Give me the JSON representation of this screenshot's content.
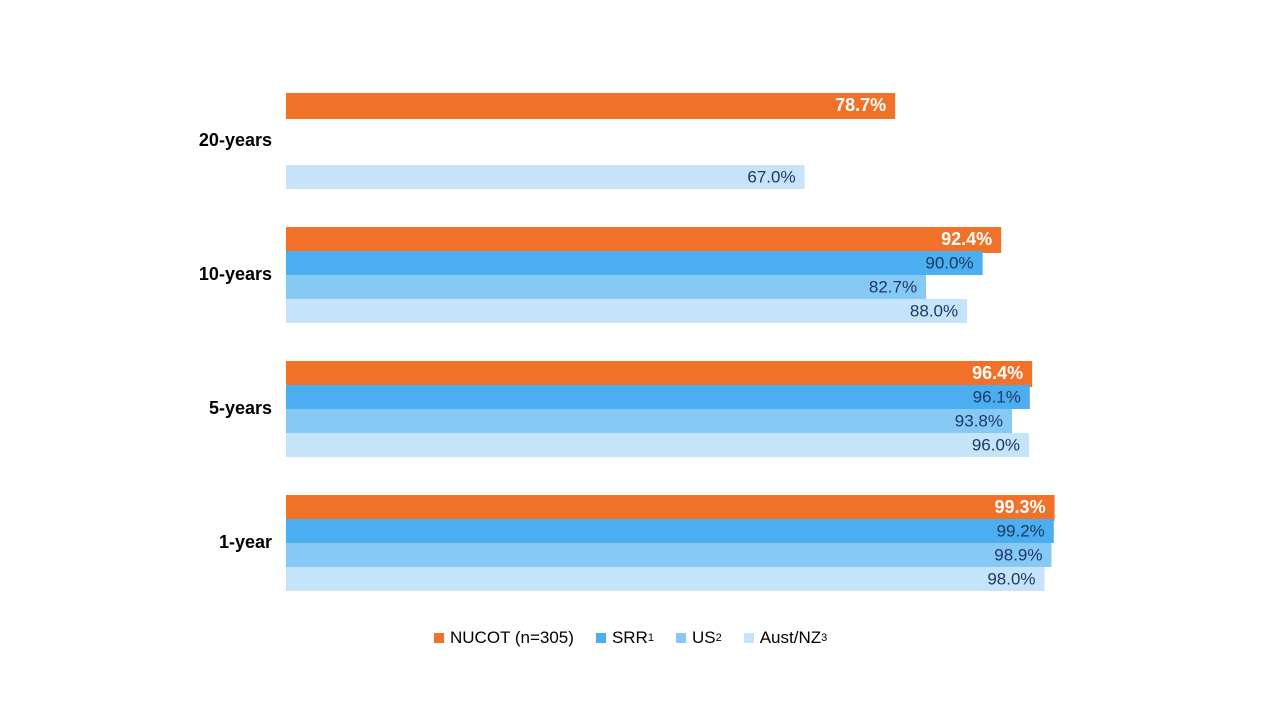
{
  "chart_data": {
    "type": "bar",
    "orientation": "horizontal",
    "categories": [
      "20-years",
      "10-years",
      "5-years",
      "1-year"
    ],
    "series": [
      {
        "name": "NUCOT (n=305)",
        "sup": "",
        "color": "#f27128",
        "values": [
          78.7,
          92.4,
          96.4,
          99.3
        ]
      },
      {
        "name": "SRR",
        "sup": "1",
        "color": "#4aaef0",
        "values": [
          null,
          90.0,
          96.1,
          99.2
        ]
      },
      {
        "name": "US",
        "sup": "2",
        "color": "#86c9f5",
        "values": [
          null,
          82.7,
          93.8,
          98.9
        ]
      },
      {
        "name": "Aust/NZ",
        "sup": "3",
        "color": "#c5e4fa",
        "values": [
          67.0,
          88.0,
          96.0,
          98.0
        ]
      }
    ],
    "data_labels": [
      [
        "78.7%",
        "",
        "",
        "67.0%"
      ],
      [
        "92.4%",
        "90.0%",
        "82.7%",
        "88.0%"
      ],
      [
        "96.4%",
        "96.1%",
        "93.8%",
        "96.0%"
      ],
      [
        "99.3%",
        "99.2%",
        "98.9%",
        "98.0%"
      ]
    ],
    "xlim": [
      0,
      100
    ],
    "grid": false,
    "legend_position": "bottom"
  }
}
